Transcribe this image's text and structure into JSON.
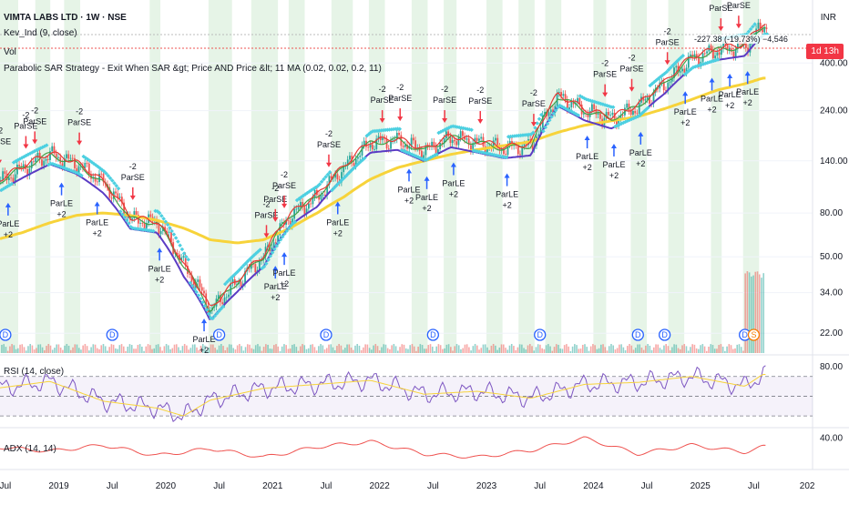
{
  "header": {
    "title": "VIMTA LABS LTD · 1W · NSE",
    "indicator1": "Kev_Ind (9, close)",
    "indicator2": "Vol",
    "strategy": "Parabolic SAR Strategy - Exit When SAR &gt; Price AND Price &lt; 11 MA (0.02, 0.02, 0.2, 11)"
  },
  "price_axis": {
    "currency": "INR",
    "countdown": "1d 13h",
    "ticks": [
      "400.00",
      "240.00",
      "140.00",
      "80.00",
      "50.00",
      "34.00",
      "22.00"
    ]
  },
  "rsi_pane": {
    "label": "RSI (14, close)",
    "ticks": [
      "80.00"
    ]
  },
  "adx_pane": {
    "label": "ADX (14, 14)",
    "ticks": [
      "40.00"
    ]
  },
  "x_axis": {
    "ticks": [
      "Jul",
      "2019",
      "Jul",
      "2020",
      "Jul",
      "2021",
      "Jul",
      "2022",
      "Jul",
      "2023",
      "Jul",
      "2024",
      "Jul",
      "2025",
      "Jul",
      "202"
    ]
  },
  "trade_note": "-227.38 (-19.73%) −4,546",
  "colors": {
    "up": "#26a69a",
    "down": "#ef5350",
    "ma_long": "#f7d33a",
    "ma_mid": "#5b3cc4",
    "ma_short": "#e53935",
    "ma_green": "#43a047",
    "sar": "#4dd0e1",
    "buy": "#2962ff",
    "sell": "#f23645",
    "shade": "#c8e6c9"
  },
  "chart_data": [
    {
      "type": "candlestick",
      "title": "VIMTA LABS LTD · 1W · NSE",
      "scale": "log",
      "ylim": [
        20,
        700
      ],
      "x": [
        "2018-06",
        "2018-09",
        "2018-12",
        "2019-03",
        "2019-06",
        "2019-09",
        "2019-12",
        "2020-03",
        "2020-06",
        "2020-09",
        "2020-12",
        "2021-03",
        "2021-06",
        "2021-09",
        "2021-12",
        "2022-03",
        "2022-06",
        "2022-09",
        "2022-12",
        "2023-03",
        "2023-06",
        "2023-09",
        "2023-12",
        "2024-03",
        "2024-06",
        "2024-09",
        "2024-12",
        "2025-03",
        "2025-06",
        "2025-08"
      ],
      "close": [
        110,
        130,
        150,
        135,
        110,
        75,
        72,
        45,
        28,
        38,
        50,
        78,
        95,
        130,
        170,
        175,
        155,
        180,
        170,
        160,
        165,
        280,
        240,
        220,
        250,
        320,
        420,
        460,
        480,
        600
      ],
      "series": [
        {
          "name": "",
          "values": [
            60,
            65,
            72,
            78,
            80,
            78,
            74,
            68,
            60,
            58,
            60,
            68,
            80,
            95,
            115,
            130,
            140,
            150,
            158,
            165,
            172,
            190,
            205,
            215,
            225,
            245,
            270,
            300,
            320,
            340
          ]
        }
      ],
      "signals": [
        {
          "x": "2018-06",
          "label": "ParSE",
          "qty": "-2",
          "side": "sell"
        },
        {
          "x": "2018-07",
          "label": "ParLE",
          "qty": "+2",
          "side": "buy"
        },
        {
          "x": "2018-09",
          "label": "ParSE",
          "qty": "-2",
          "side": "sell"
        },
        {
          "x": "2018-10",
          "label": "ParSE",
          "qty": "-2",
          "side": "sell"
        },
        {
          "x": "2019-01",
          "label": "ParLE",
          "qty": "+2",
          "side": "buy"
        },
        {
          "x": "2019-03",
          "label": "ParSE",
          "qty": "-2",
          "side": "sell"
        },
        {
          "x": "2019-05",
          "label": "ParLE",
          "qty": "+2",
          "side": "buy"
        },
        {
          "x": "2019-09",
          "label": "ParSE",
          "qty": "-2",
          "side": "sell"
        },
        {
          "x": "2019-12",
          "label": "ParLE",
          "qty": "+2",
          "side": "buy"
        },
        {
          "x": "2020-05",
          "label": "ParLE",
          "qty": "+2",
          "side": "buy"
        },
        {
          "x": "2020-12",
          "label": "ParSE",
          "qty": "-2",
          "side": "sell"
        },
        {
          "x": "2021-01",
          "label": "ParSE",
          "qty": "-2",
          "side": "sell"
        },
        {
          "x": "2021-01",
          "label": "ParLE",
          "qty": "+2",
          "side": "buy"
        },
        {
          "x": "2021-02",
          "label": "ParLE",
          "qty": "+2",
          "side": "buy"
        },
        {
          "x": "2021-02",
          "label": "ParSE",
          "qty": "-2",
          "side": "sell"
        },
        {
          "x": "2021-07",
          "label": "ParSE",
          "qty": "-2",
          "side": "sell"
        },
        {
          "x": "2021-08",
          "label": "ParLE",
          "qty": "+2",
          "side": "buy"
        },
        {
          "x": "2022-01",
          "label": "ParSE",
          "qty": "-2",
          "side": "sell"
        },
        {
          "x": "2022-03",
          "label": "ParSE",
          "qty": "-2",
          "side": "sell"
        },
        {
          "x": "2022-04",
          "label": "ParLE",
          "qty": "+2",
          "side": "buy"
        },
        {
          "x": "2022-06",
          "label": "ParLE",
          "qty": "+2",
          "side": "buy"
        },
        {
          "x": "2022-08",
          "label": "ParSE",
          "qty": "-2",
          "side": "sell"
        },
        {
          "x": "2022-09",
          "label": "ParLE",
          "qty": "+2",
          "side": "buy"
        },
        {
          "x": "2022-12",
          "label": "ParSE",
          "qty": "-2",
          "side": "sell"
        },
        {
          "x": "2023-03",
          "label": "ParLE",
          "qty": "+2",
          "side": "buy"
        },
        {
          "x": "2023-06",
          "label": "ParSE",
          "qty": "-2",
          "side": "sell"
        },
        {
          "x": "2023-12",
          "label": "ParLE",
          "qty": "+2",
          "side": "buy"
        },
        {
          "x": "2024-02",
          "label": "ParSE",
          "qty": "-2",
          "side": "sell"
        },
        {
          "x": "2024-03",
          "label": "ParLE",
          "qty": "+2",
          "side": "buy"
        },
        {
          "x": "2024-05",
          "label": "ParSE",
          "qty": "-2",
          "side": "sell"
        },
        {
          "x": "2024-06",
          "label": "ParLE",
          "qty": "+2",
          "side": "buy"
        },
        {
          "x": "2024-09",
          "label": "ParSE",
          "qty": "-2",
          "side": "sell"
        },
        {
          "x": "2024-11",
          "label": "ParLE",
          "qty": "+2",
          "side": "buy"
        },
        {
          "x": "2025-02",
          "label": "ParLE",
          "qty": "+2",
          "side": "buy"
        },
        {
          "x": "2025-03",
          "label": "ParSE",
          "qty": "-2",
          "side": "sell"
        },
        {
          "x": "2025-04",
          "label": "ParLE",
          "qty": "+2",
          "side": "buy"
        },
        {
          "x": "2025-05",
          "label": "ParSE",
          "qty": "-2",
          "side": "sell"
        },
        {
          "x": "2025-06",
          "label": "ParLE",
          "qty": "+2",
          "side": "buy"
        }
      ],
      "dividends": [
        "2018-07",
        "2019-07",
        "2020-07",
        "2021-07",
        "2022-07",
        "2023-07",
        "2024-06",
        "2024-09",
        "2025-06"
      ],
      "split_marker": {
        "x": "2025-07",
        "label": "S"
      }
    },
    {
      "type": "line",
      "title": "RSI (14, close)",
      "ylim": [
        20,
        90
      ],
      "x": [
        "2018-06",
        "2018-12",
        "2019-06",
        "2019-12",
        "2020-03",
        "2020-06",
        "2020-12",
        "2021-06",
        "2021-12",
        "2022-06",
        "2022-12",
        "2023-06",
        "2023-12",
        "2024-06",
        "2024-12",
        "2025-06",
        "2025-08"
      ],
      "values": [
        58,
        65,
        45,
        38,
        30,
        46,
        58,
        62,
        66,
        52,
        55,
        48,
        62,
        64,
        70,
        60,
        72
      ]
    },
    {
      "type": "line",
      "title": "ADX (14, 14)",
      "ylim": [
        5,
        50
      ],
      "x": [
        "2018-06",
        "2018-12",
        "2019-06",
        "2019-12",
        "2020-06",
        "2020-12",
        "2021-06",
        "2021-12",
        "2022-06",
        "2022-12",
        "2023-06",
        "2023-12",
        "2024-06",
        "2024-12",
        "2025-06",
        "2025-08"
      ],
      "values": [
        30,
        25,
        32,
        20,
        28,
        18,
        30,
        36,
        22,
        18,
        26,
        40,
        22,
        32,
        24,
        30
      ]
    }
  ]
}
